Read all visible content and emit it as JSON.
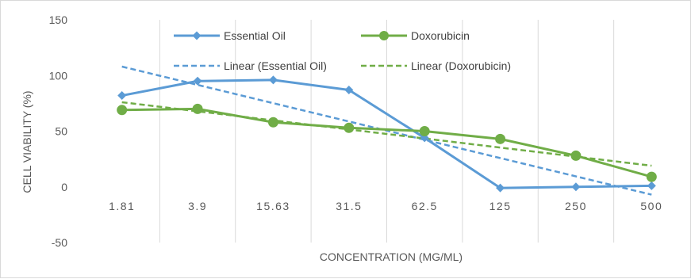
{
  "chart_data": {
    "type": "line",
    "title": "",
    "xlabel": "CONCENTRATION (MG/ML)",
    "ylabel": "CELL VIABILITY (%)",
    "categories": [
      "1.81",
      "3.9",
      "15.63",
      "31.5",
      "62.5",
      "125",
      "250",
      "500"
    ],
    "ylim": [
      -50,
      150
    ],
    "yticks": [
      "-50",
      "0",
      "50",
      "100",
      "150"
    ],
    "ytick_values": [
      -50,
      0,
      50,
      100,
      150
    ],
    "grid": "vertical",
    "legend_position": "top",
    "series": [
      {
        "name": "Essential Oil",
        "values": [
          82,
          95,
          96,
          87,
          44,
          -1,
          0,
          1
        ],
        "color": "#5b9bd5",
        "marker": "diamond"
      },
      {
        "name": "Doxorubicin",
        "values": [
          69,
          70,
          58,
          53,
          50,
          43,
          28,
          9
        ],
        "color": "#70ad47",
        "marker": "circle"
      }
    ],
    "trendlines": [
      {
        "name": "Linear (Essential Oil)",
        "start": 108,
        "end": -7,
        "color": "#5b9bd5"
      },
      {
        "name": "Linear (Doxorubicin)",
        "start": 76,
        "end": 19,
        "color": "#70ad47"
      }
    ]
  }
}
